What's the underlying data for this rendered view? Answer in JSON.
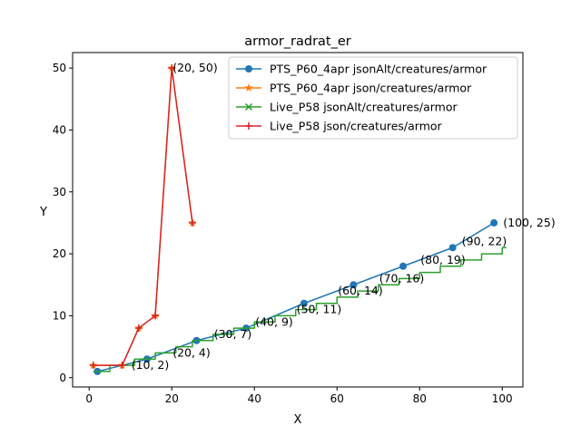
{
  "chart_data": {
    "type": "line",
    "title": "armor_radrat_er",
    "xlabel": "X",
    "ylabel": "Y",
    "xlim": [
      -4,
      105
    ],
    "ylim": [
      -1.5,
      52.5
    ],
    "xticks": [
      0,
      20,
      40,
      60,
      80,
      100
    ],
    "yticks": [
      0,
      10,
      20,
      30,
      40,
      50
    ],
    "grid": false,
    "legend_position": "top-right",
    "series": [
      {
        "name": "PTS_P60_4apr jsonAlt/creatures/armor",
        "color": "#1f77b4",
        "marker": "circle",
        "points": [
          [
            2,
            1
          ],
          [
            14,
            3
          ],
          [
            26,
            6
          ],
          [
            38,
            8
          ],
          [
            52,
            12
          ],
          [
            64,
            15
          ],
          [
            76,
            18
          ],
          [
            88,
            21
          ],
          [
            98,
            25
          ]
        ]
      },
      {
        "name": "PTS_P60_4apr json/creatures/armor",
        "color": "#ff7f0e",
        "marker": "star",
        "points": [
          [
            1,
            2
          ],
          [
            8,
            2
          ],
          [
            12,
            8
          ],
          [
            16,
            10
          ],
          [
            20,
            50
          ],
          [
            25,
            25
          ]
        ]
      },
      {
        "name": "Live_P58 jsonAlt/creatures/armor",
        "color": "#2ca02c",
        "marker": "x",
        "points": [
          [
            1,
            1
          ],
          [
            2,
            1
          ],
          [
            3,
            1
          ],
          [
            4,
            1
          ],
          [
            5,
            2
          ],
          [
            6,
            2
          ],
          [
            7,
            2
          ],
          [
            8,
            2
          ],
          [
            9,
            2
          ],
          [
            10,
            2
          ],
          [
            11,
            3
          ],
          [
            12,
            3
          ],
          [
            13,
            3
          ],
          [
            14,
            3
          ],
          [
            15,
            3
          ],
          [
            16,
            4
          ],
          [
            17,
            4
          ],
          [
            18,
            4
          ],
          [
            19,
            4
          ],
          [
            20,
            4
          ],
          [
            21,
            5
          ],
          [
            22,
            5
          ],
          [
            23,
            5
          ],
          [
            24,
            5
          ],
          [
            25,
            6
          ],
          [
            26,
            6
          ],
          [
            27,
            6
          ],
          [
            28,
            6
          ],
          [
            29,
            6
          ],
          [
            30,
            7
          ],
          [
            31,
            7
          ],
          [
            32,
            7
          ],
          [
            33,
            7
          ],
          [
            34,
            7
          ],
          [
            35,
            8
          ],
          [
            36,
            8
          ],
          [
            37,
            8
          ],
          [
            38,
            8
          ],
          [
            39,
            8
          ],
          [
            40,
            9
          ],
          [
            41,
            9
          ],
          [
            42,
            9
          ],
          [
            43,
            9
          ],
          [
            44,
            9
          ],
          [
            45,
            10
          ],
          [
            46,
            10
          ],
          [
            47,
            10
          ],
          [
            48,
            10
          ],
          [
            49,
            10
          ],
          [
            50,
            11
          ],
          [
            51,
            11
          ],
          [
            52,
            11
          ],
          [
            53,
            11
          ],
          [
            54,
            11
          ],
          [
            55,
            12
          ],
          [
            56,
            12
          ],
          [
            57,
            12
          ],
          [
            58,
            12
          ],
          [
            59,
            12
          ],
          [
            60,
            13
          ],
          [
            61,
            13
          ],
          [
            62,
            13
          ],
          [
            63,
            13
          ],
          [
            64,
            13
          ],
          [
            65,
            14
          ],
          [
            66,
            14
          ],
          [
            67,
            14
          ],
          [
            68,
            14
          ],
          [
            69,
            14
          ],
          [
            70,
            15
          ],
          [
            71,
            15
          ],
          [
            72,
            15
          ],
          [
            73,
            15
          ],
          [
            74,
            15
          ],
          [
            75,
            16
          ],
          [
            76,
            16
          ],
          [
            77,
            16
          ],
          [
            78,
            16
          ],
          [
            79,
            16
          ],
          [
            80,
            17
          ],
          [
            81,
            17
          ],
          [
            82,
            17
          ],
          [
            83,
            17
          ],
          [
            84,
            17
          ],
          [
            85,
            18
          ],
          [
            86,
            18
          ],
          [
            87,
            18
          ],
          [
            88,
            18
          ],
          [
            89,
            18
          ],
          [
            90,
            19
          ],
          [
            91,
            19
          ],
          [
            92,
            19
          ],
          [
            93,
            19
          ],
          [
            94,
            19
          ],
          [
            95,
            20
          ],
          [
            96,
            20
          ],
          [
            97,
            20
          ],
          [
            98,
            20
          ],
          [
            99,
            20
          ],
          [
            100,
            21
          ],
          [
            101,
            21
          ]
        ]
      },
      {
        "name": "Live_P58 json/creatures/armor",
        "color": "#d62728",
        "marker": "plus",
        "points": [
          [
            1,
            2
          ],
          [
            8,
            2
          ],
          [
            12,
            8
          ],
          [
            16,
            10
          ],
          [
            20,
            50
          ],
          [
            25,
            25
          ]
        ]
      }
    ],
    "annotations": [
      {
        "text": "(20, 50)",
        "x": 20,
        "y": 50
      },
      {
        "text": "(10, 2)",
        "x": 10,
        "y": 2
      },
      {
        "text": "(20, 4)",
        "x": 20,
        "y": 4
      },
      {
        "text": "(30, 7)",
        "x": 30,
        "y": 7
      },
      {
        "text": "(40, 9)",
        "x": 40,
        "y": 9
      },
      {
        "text": "(50, 11)",
        "x": 50,
        "y": 11
      },
      {
        "text": "(60, 14)",
        "x": 60,
        "y": 14
      },
      {
        "text": "(70, 16)",
        "x": 70,
        "y": 16
      },
      {
        "text": "(80, 19)",
        "x": 80,
        "y": 19
      },
      {
        "text": "(90, 22)",
        "x": 90,
        "y": 22
      },
      {
        "text": "(100, 25)",
        "x": 100,
        "y": 25
      }
    ]
  }
}
